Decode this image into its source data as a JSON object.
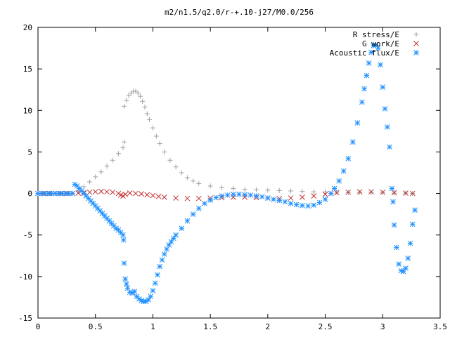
{
  "chart_data": {
    "type": "scatter",
    "title": "m2/n1.5/q2.0/r-+.10-j27/M0.0/256",
    "xlabel": "",
    "ylabel": "",
    "xlim": [
      0,
      3.5
    ],
    "ylim": [
      -15,
      20
    ],
    "x_ticks": [
      "0",
      "0.5",
      "1",
      "1.5",
      "2",
      "2.5",
      "3",
      "3.5"
    ],
    "y_ticks": [
      "20",
      "15",
      "10",
      "5",
      "0",
      "-5",
      "-10",
      "-15"
    ],
    "grid": false,
    "legend_position": "top-right",
    "series": [
      {
        "name": "R stress/E",
        "marker": "plus",
        "color": "#a0a0a0",
        "points": [
          [
            0.0,
            0.0
          ],
          [
            0.05,
            0.0
          ],
          [
            0.1,
            0.0
          ],
          [
            0.15,
            0.0
          ],
          [
            0.2,
            0.0
          ],
          [
            0.25,
            0.0
          ],
          [
            0.3,
            0.0
          ],
          [
            0.35,
            0.3
          ],
          [
            0.4,
            0.8
          ],
          [
            0.45,
            1.4
          ],
          [
            0.5,
            2.0
          ],
          [
            0.55,
            2.6
          ],
          [
            0.6,
            3.3
          ],
          [
            0.65,
            4.0
          ],
          [
            0.7,
            4.8
          ],
          [
            0.74,
            5.5
          ],
          [
            0.75,
            6.2
          ],
          [
            0.75,
            10.5
          ],
          [
            0.77,
            11.2
          ],
          [
            0.79,
            11.8
          ],
          [
            0.81,
            12.1
          ],
          [
            0.83,
            12.3
          ],
          [
            0.85,
            12.3
          ],
          [
            0.87,
            12.1
          ],
          [
            0.89,
            11.7
          ],
          [
            0.91,
            11.1
          ],
          [
            0.93,
            10.4
          ],
          [
            0.95,
            9.6
          ],
          [
            0.97,
            8.9
          ],
          [
            1.0,
            7.9
          ],
          [
            1.03,
            6.9
          ],
          [
            1.06,
            6.0
          ],
          [
            1.1,
            5.0
          ],
          [
            1.15,
            4.0
          ],
          [
            1.2,
            3.2
          ],
          [
            1.25,
            2.5
          ],
          [
            1.3,
            1.9
          ],
          [
            1.35,
            1.5
          ],
          [
            1.4,
            1.2
          ],
          [
            1.5,
            0.9
          ],
          [
            1.6,
            0.7
          ],
          [
            1.7,
            0.6
          ],
          [
            1.8,
            0.5
          ],
          [
            1.9,
            0.45
          ],
          [
            2.0,
            0.4
          ],
          [
            2.1,
            0.35
          ],
          [
            2.2,
            0.3
          ],
          [
            2.3,
            0.25
          ],
          [
            2.4,
            0.2
          ],
          [
            2.5,
            0.2
          ],
          [
            2.6,
            0.15
          ],
          [
            2.7,
            0.1
          ],
          [
            2.8,
            0.1
          ],
          [
            2.9,
            0.1
          ],
          [
            3.0,
            0.1
          ],
          [
            3.1,
            0.05
          ],
          [
            3.2,
            0.05
          ],
          [
            3.26,
            0.0
          ]
        ]
      },
      {
        "name": "G work/E",
        "marker": "cross",
        "color": "#c03030",
        "points": [
          [
            0.0,
            0.0
          ],
          [
            0.05,
            0.0
          ],
          [
            0.1,
            0.0
          ],
          [
            0.15,
            0.0
          ],
          [
            0.2,
            0.0
          ],
          [
            0.25,
            0.0
          ],
          [
            0.3,
            0.0
          ],
          [
            0.35,
            0.05
          ],
          [
            0.4,
            0.1
          ],
          [
            0.45,
            0.15
          ],
          [
            0.5,
            0.2
          ],
          [
            0.55,
            0.25
          ],
          [
            0.6,
            0.2
          ],
          [
            0.65,
            0.15
          ],
          [
            0.7,
            0.0
          ],
          [
            0.72,
            -0.2
          ],
          [
            0.74,
            -0.3
          ],
          [
            0.76,
            -0.1
          ],
          [
            0.8,
            0.05
          ],
          [
            0.85,
            0.0
          ],
          [
            0.9,
            -0.05
          ],
          [
            0.95,
            -0.15
          ],
          [
            1.0,
            -0.25
          ],
          [
            1.05,
            -0.35
          ],
          [
            1.1,
            -0.45
          ],
          [
            1.2,
            -0.55
          ],
          [
            1.3,
            -0.6
          ],
          [
            1.4,
            -0.6
          ],
          [
            1.5,
            -0.55
          ],
          [
            1.6,
            -0.5
          ],
          [
            1.7,
            -0.45
          ],
          [
            1.8,
            -0.45
          ],
          [
            1.9,
            -0.5
          ],
          [
            2.0,
            -0.55
          ],
          [
            2.1,
            -0.6
          ],
          [
            2.2,
            -0.55
          ],
          [
            2.3,
            -0.45
          ],
          [
            2.4,
            -0.3
          ],
          [
            2.5,
            -0.1
          ],
          [
            2.55,
            0.0
          ],
          [
            2.6,
            0.1
          ],
          [
            2.7,
            0.15
          ],
          [
            2.8,
            0.2
          ],
          [
            2.9,
            0.2
          ],
          [
            3.0,
            0.15
          ],
          [
            3.1,
            0.1
          ],
          [
            3.2,
            0.05
          ],
          [
            3.26,
            0.0
          ]
        ]
      },
      {
        "name": "Acoustic flux/E",
        "marker": "star",
        "color": "#1e90ff",
        "points": [
          [
            0.0,
            0.0
          ],
          [
            0.03,
            0.0
          ],
          [
            0.06,
            0.0
          ],
          [
            0.09,
            0.0
          ],
          [
            0.12,
            0.0
          ],
          [
            0.15,
            0.0
          ],
          [
            0.18,
            0.0
          ],
          [
            0.21,
            0.0
          ],
          [
            0.24,
            0.0
          ],
          [
            0.27,
            0.0
          ],
          [
            0.3,
            0.0
          ],
          [
            0.32,
            1.1
          ],
          [
            0.34,
            0.9
          ],
          [
            0.36,
            0.6
          ],
          [
            0.38,
            0.3
          ],
          [
            0.4,
            0.0
          ],
          [
            0.42,
            -0.3
          ],
          [
            0.44,
            -0.6
          ],
          [
            0.46,
            -0.9
          ],
          [
            0.48,
            -1.2
          ],
          [
            0.5,
            -1.5
          ],
          [
            0.52,
            -1.8
          ],
          [
            0.54,
            -2.1
          ],
          [
            0.56,
            -2.4
          ],
          [
            0.58,
            -2.7
          ],
          [
            0.6,
            -3.0
          ],
          [
            0.62,
            -3.3
          ],
          [
            0.64,
            -3.6
          ],
          [
            0.66,
            -3.9
          ],
          [
            0.68,
            -4.2
          ],
          [
            0.7,
            -4.4
          ],
          [
            0.72,
            -4.7
          ],
          [
            0.74,
            -5.0
          ],
          [
            0.745,
            -5.6
          ],
          [
            0.75,
            -8.4
          ],
          [
            0.76,
            -10.3
          ],
          [
            0.77,
            -10.9
          ],
          [
            0.78,
            -11.4
          ],
          [
            0.8,
            -11.9
          ],
          [
            0.82,
            -12.0
          ],
          [
            0.84,
            -11.8
          ],
          [
            0.86,
            -12.4
          ],
          [
            0.88,
            -12.7
          ],
          [
            0.9,
            -12.9
          ],
          [
            0.92,
            -13.0
          ],
          [
            0.94,
            -13.0
          ],
          [
            0.96,
            -12.8
          ],
          [
            0.98,
            -12.4
          ],
          [
            1.0,
            -11.7
          ],
          [
            1.02,
            -10.8
          ],
          [
            1.04,
            -9.8
          ],
          [
            1.06,
            -8.8
          ],
          [
            1.08,
            -8.0
          ],
          [
            1.1,
            -7.3
          ],
          [
            1.12,
            -6.7
          ],
          [
            1.14,
            -6.2
          ],
          [
            1.16,
            -5.8
          ],
          [
            1.18,
            -5.4
          ],
          [
            1.2,
            -5.0
          ],
          [
            1.25,
            -4.2
          ],
          [
            1.3,
            -3.3
          ],
          [
            1.35,
            -2.5
          ],
          [
            1.4,
            -1.8
          ],
          [
            1.45,
            -1.2
          ],
          [
            1.5,
            -0.8
          ],
          [
            1.55,
            -0.5
          ],
          [
            1.6,
            -0.3
          ],
          [
            1.65,
            -0.2
          ],
          [
            1.7,
            -0.1
          ],
          [
            1.75,
            -0.1
          ],
          [
            1.8,
            -0.15
          ],
          [
            1.85,
            -0.2
          ],
          [
            1.9,
            -0.3
          ],
          [
            1.95,
            -0.4
          ],
          [
            2.0,
            -0.55
          ],
          [
            2.05,
            -0.7
          ],
          [
            2.1,
            -0.85
          ],
          [
            2.15,
            -1.0
          ],
          [
            2.2,
            -1.2
          ],
          [
            2.25,
            -1.35
          ],
          [
            2.3,
            -1.45
          ],
          [
            2.35,
            -1.5
          ],
          [
            2.4,
            -1.4
          ],
          [
            2.45,
            -1.1
          ],
          [
            2.5,
            -0.7
          ],
          [
            2.55,
            0.0
          ],
          [
            2.58,
            0.6
          ],
          [
            2.62,
            1.5
          ],
          [
            2.66,
            2.7
          ],
          [
            2.7,
            4.2
          ],
          [
            2.74,
            6.2
          ],
          [
            2.78,
            8.5
          ],
          [
            2.82,
            11.0
          ],
          [
            2.84,
            12.6
          ],
          [
            2.86,
            14.2
          ],
          [
            2.88,
            15.7
          ],
          [
            2.9,
            17.0
          ],
          [
            2.92,
            17.8
          ],
          [
            2.94,
            17.9
          ],
          [
            2.96,
            17.5
          ],
          [
            2.98,
            15.5
          ],
          [
            3.0,
            12.8
          ],
          [
            3.02,
            10.2
          ],
          [
            3.04,
            8.0
          ],
          [
            3.06,
            5.6
          ],
          [
            3.08,
            0.6
          ],
          [
            3.09,
            -1.0
          ],
          [
            3.1,
            -3.8
          ],
          [
            3.12,
            -6.5
          ],
          [
            3.14,
            -8.5
          ],
          [
            3.16,
            -9.3
          ],
          [
            3.18,
            -9.4
          ],
          [
            3.2,
            -9.0
          ],
          [
            3.22,
            -7.8
          ],
          [
            3.24,
            -6.0
          ],
          [
            3.26,
            -3.7
          ],
          [
            3.28,
            -2.0
          ]
        ]
      }
    ]
  }
}
